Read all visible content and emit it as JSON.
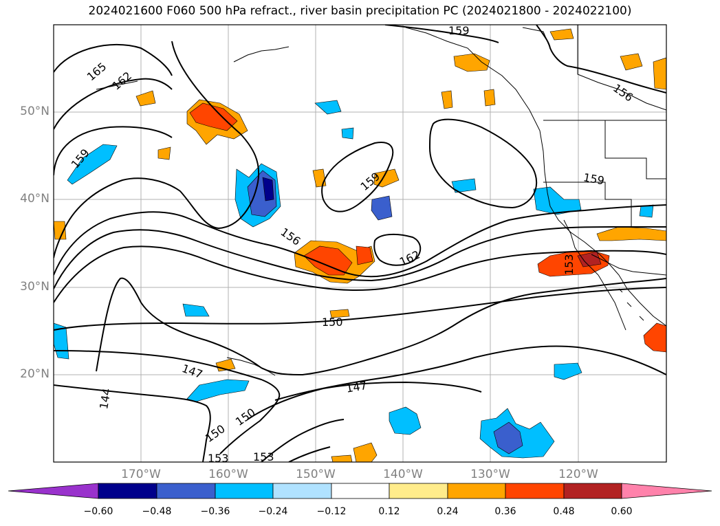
{
  "title": "2024021600 F060 500 hPa refract., river basin precipitation PC (2024021800 - 2024022100)",
  "lat_labels": [
    "50°N",
    "40°N",
    "30°N",
    "20°N"
  ],
  "lon_labels": [
    "170°W",
    "160°W",
    "150°W",
    "140°W",
    "130°W",
    "120°W"
  ],
  "contour_labels": [
    "165",
    "162",
    "159",
    "159",
    "159",
    "156",
    "156",
    "162",
    "153",
    "150",
    "147",
    "147",
    "144",
    "150",
    "150",
    "153",
    "153",
    "159"
  ],
  "colorbar": {
    "ticks": [
      "−0.60",
      "−0.48",
      "−0.36",
      "−0.24",
      "−0.12",
      "0.12",
      "0.24",
      "0.36",
      "0.48",
      "0.60"
    ],
    "colors": [
      "#9932cc",
      "#00008b",
      "#3a5fcd",
      "#00bfff",
      "#b0e2ff",
      "#ffffff",
      "#ffec8b",
      "#ffa500",
      "#ff4500",
      "#b22222",
      "#ff82ab"
    ]
  },
  "colors": {
    "neg_light": "#b0e2ff",
    "neg_mid": "#00bfff",
    "neg_strong": "#3a5fcd",
    "neg_max": "#00008b",
    "pos_light": "#ffec8b",
    "pos_mid": "#ffa500",
    "pos_strong": "#ff4500",
    "pos_max": "#b22222",
    "grid": "#b0b0b0",
    "contour": "#000000"
  }
}
